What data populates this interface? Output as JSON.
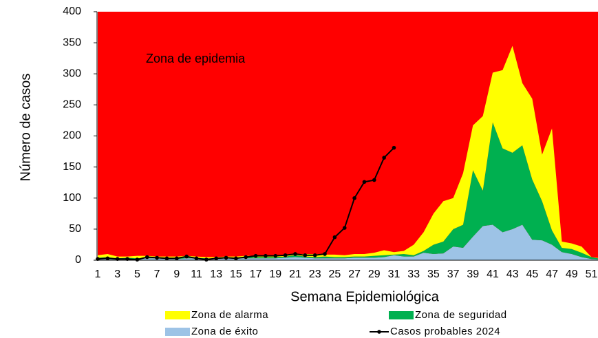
{
  "chart_data": {
    "type": "stacked_area",
    "annotation": "Zona de epidemia",
    "xlabel": "Semana Epidemiológica",
    "ylabel": "Número de casos",
    "plot_background": "#ff0000",
    "categories": [
      1,
      null,
      3,
      null,
      5,
      null,
      7,
      null,
      9,
      null,
      11,
      null,
      13,
      null,
      15,
      null,
      17,
      null,
      19,
      null,
      21,
      null,
      23,
      null,
      25,
      null,
      27,
      null,
      29,
      null,
      31,
      null,
      33,
      null,
      35,
      null,
      37,
      null,
      39,
      null,
      41,
      null,
      43,
      null,
      45,
      null,
      47,
      null,
      49,
      null,
      51,
      null
    ],
    "ylim": [
      0,
      400
    ],
    "yticks": [
      0,
      50,
      100,
      150,
      200,
      250,
      300,
      350,
      400
    ],
    "series": [
      {
        "name": "Zona de éxito",
        "color": "#9dc3e6",
        "values": [
          2,
          2,
          2,
          2,
          2,
          3,
          3,
          2,
          2,
          3,
          3,
          2,
          2,
          3,
          3,
          3,
          3,
          3,
          3,
          4,
          5,
          4,
          3,
          3,
          3,
          3,
          4,
          4,
          4,
          5,
          8,
          6,
          6,
          12,
          10,
          11,
          22,
          20,
          38,
          55,
          57,
          45,
          50,
          57,
          33,
          32,
          25,
          13,
          10,
          5,
          2,
          1
        ]
      },
      {
        "name": "Zona de seguridad",
        "color": "#00b050",
        "values": [
          2,
          3,
          1,
          2,
          1,
          1,
          1,
          1,
          2,
          2,
          1,
          1,
          1,
          1,
          1,
          2,
          2,
          2,
          2,
          2,
          3,
          2,
          2,
          3,
          2,
          2,
          2,
          2,
          3,
          3,
          1,
          4,
          2,
          3,
          15,
          19,
          28,
          37,
          107,
          57,
          165,
          135,
          123,
          128,
          97,
          63,
          23,
          7,
          8,
          7,
          3,
          1
        ]
      },
      {
        "name": "Zona de alarma",
        "color": "#ffff00",
        "values": [
          4,
          5,
          3,
          2,
          4,
          3,
          2,
          3,
          2,
          2,
          2,
          2,
          2,
          2,
          2,
          2,
          2,
          2,
          3,
          3,
          2,
          4,
          5,
          3,
          4,
          3,
          4,
          4,
          5,
          8,
          4,
          5,
          17,
          30,
          50,
          65,
          50,
          83,
          72,
          120,
          80,
          126,
          172,
          100,
          130,
          75,
          164,
          10,
          9,
          10,
          0,
          1
        ]
      },
      {
        "name": "Casos probables 2024",
        "color": "#000000",
        "line": true,
        "values": [
          2,
          3,
          2,
          2,
          1,
          5,
          4,
          3,
          3,
          6,
          3,
          1,
          3,
          4,
          3,
          5,
          7,
          7,
          7,
          8,
          10,
          8,
          8,
          10,
          37,
          52,
          100,
          126,
          129,
          165,
          181,
          null,
          null,
          null,
          null,
          null,
          null,
          null,
          null,
          null,
          null,
          null,
          null,
          null,
          null,
          null,
          null,
          null,
          null,
          null,
          null,
          null
        ]
      }
    ]
  }
}
